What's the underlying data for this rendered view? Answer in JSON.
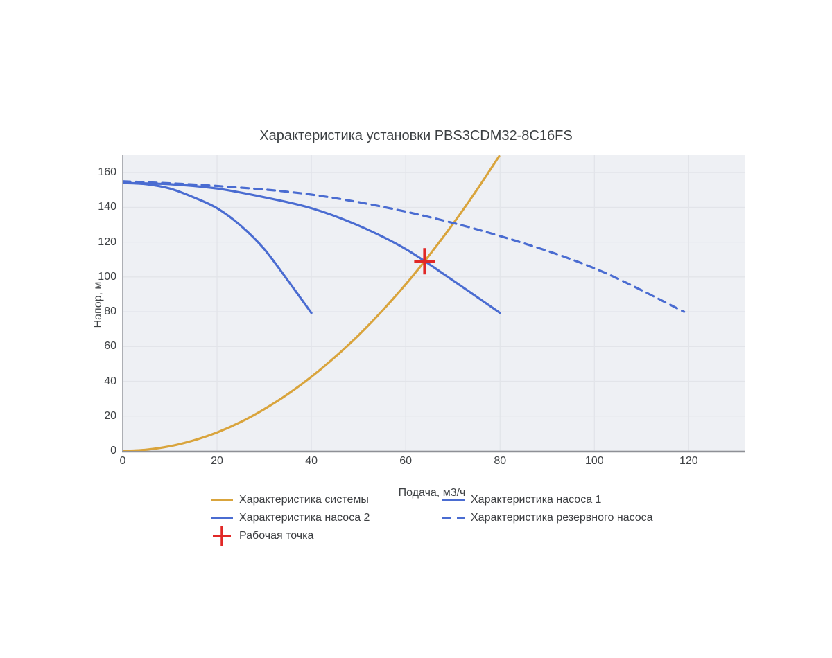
{
  "colors": {
    "plot_bg": "#eef0f4",
    "grid": "#e2e4e9",
    "axis_line": "#9b9da4",
    "axis_line_bottom": "#8e9096",
    "title_text": "#3c4043",
    "tick_text": "#3f4245",
    "series_system": "#d9a43c",
    "series_pump": "#4a6cd1",
    "operating_point": "#e12826"
  },
  "chart_data": {
    "type": "line",
    "title": "Характеристика установки PBS3CDM32-8C16FS",
    "xlabel": "Подача, м3/ч",
    "ylabel": "Напор, м",
    "xlim": [
      0,
      132
    ],
    "ylim": [
      0,
      170
    ],
    "xticks": [
      0,
      20,
      40,
      60,
      80,
      100,
      120
    ],
    "yticks": [
      0,
      20,
      40,
      60,
      80,
      100,
      120,
      140,
      160
    ],
    "grid": true,
    "legend_position": "bottom",
    "series": [
      {
        "name": "Характеристика системы",
        "color": "#d9a43c",
        "dash": "solid",
        "points": [
          [
            0,
            0
          ],
          [
            5,
            0.7
          ],
          [
            10,
            2.7
          ],
          [
            15,
            6.0
          ],
          [
            20,
            10.6
          ],
          [
            25,
            16.6
          ],
          [
            30,
            24.0
          ],
          [
            35,
            32.6
          ],
          [
            40,
            42.6
          ],
          [
            45,
            53.9
          ],
          [
            50,
            66.5
          ],
          [
            55,
            80.5
          ],
          [
            60,
            95.8
          ],
          [
            64,
            109
          ],
          [
            70,
            130.4
          ],
          [
            75,
            149.7
          ],
          [
            79.8,
            169.4
          ]
        ]
      },
      {
        "name": "Характеристика насоса 1",
        "color": "#4a6cd1",
        "dash": "solid",
        "points": [
          [
            0,
            154
          ],
          [
            5,
            153.3
          ],
          [
            10,
            150.8
          ],
          [
            15,
            145.8
          ],
          [
            20,
            139.5
          ],
          [
            25,
            129.5
          ],
          [
            30,
            116
          ],
          [
            35,
            98
          ],
          [
            40,
            79.3
          ]
        ]
      },
      {
        "name": "Характеристика насоса 2",
        "color": "#4a6cd1",
        "dash": "solid",
        "points": [
          [
            0,
            154
          ],
          [
            10,
            153.3
          ],
          [
            20,
            150.8
          ],
          [
            30,
            145.8
          ],
          [
            40,
            139.5
          ],
          [
            50,
            129.5
          ],
          [
            60,
            116
          ],
          [
            70,
            98
          ],
          [
            80,
            79.3
          ]
        ]
      },
      {
        "name": "Характеристика резервного насоса",
        "color": "#4a6cd1",
        "dash": "dashed",
        "points": [
          [
            0,
            155
          ],
          [
            20,
            152.3
          ],
          [
            40,
            147.3
          ],
          [
            60,
            137.5
          ],
          [
            80,
            123.5
          ],
          [
            100,
            105
          ],
          [
            119,
            80
          ]
        ]
      }
    ],
    "operating_point": {
      "name": "Рабочая точка",
      "x": 64,
      "y": 109,
      "marker": "cross",
      "color": "#e12826"
    }
  },
  "legend_items": [
    {
      "label": "Характеристика системы",
      "swatch": "line-solid",
      "color": "#d9a43c",
      "col": 0,
      "row": 0
    },
    {
      "label": "Характеристика насоса 1",
      "swatch": "line-solid",
      "color": "#4a6cd1",
      "col": 1,
      "row": 0
    },
    {
      "label": "Характеристика насоса 2",
      "swatch": "line-solid",
      "color": "#4a6cd1",
      "col": 0,
      "row": 1
    },
    {
      "label": "Характеристика резервного насоса",
      "swatch": "line-dashed",
      "color": "#4a6cd1",
      "col": 1,
      "row": 1
    },
    {
      "label": "Рабочая точка",
      "swatch": "cross",
      "color": "#e12826",
      "col": 0,
      "row": 2
    }
  ]
}
